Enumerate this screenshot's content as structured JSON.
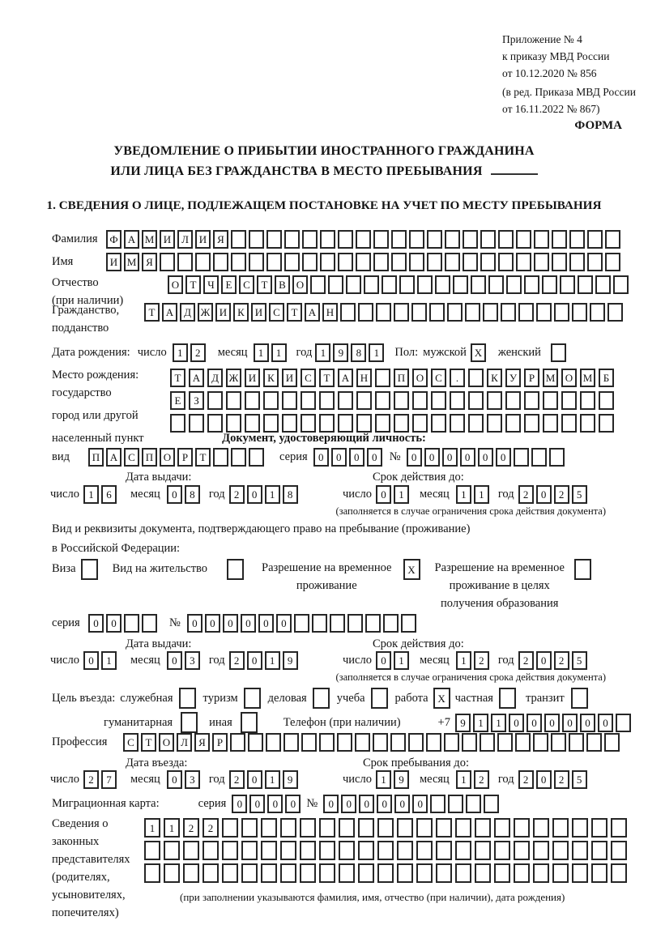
{
  "header": {
    "appendix": [
      "Приложение № 4",
      "к приказу МВД России",
      "от 10.12.2020 № 856"
    ],
    "revision": [
      "(в ред. Приказа МВД России",
      "от 16.11.2022 № 867)"
    ],
    "form_label": "ФОРМА"
  },
  "title": {
    "line1": "УВЕДОМЛЕНИЕ О ПРИБЫТИИ ИНОСТРАННОГО ГРАЖДАНИНА",
    "line2": "ИЛИ ЛИЦА БЕЗ ГРАЖДАНСТВА В МЕСТО ПРЕБЫВАНИЯ"
  },
  "section1": {
    "heading": "1. СВЕДЕНИЯ О ЛИЦЕ, ПОДЛЕЖАЩЕМ ПОСТАНОВКЕ НА УЧЕТ ПО МЕСТУ ПРЕБЫВАНИЯ",
    "surname": {
      "label": "Фамилия",
      "cells": {
        "value": "ФАМИЛИЯ",
        "length": 29
      }
    },
    "given_name": {
      "label": "Имя",
      "cells": {
        "value": "ИМЯ",
        "length": 29
      }
    },
    "patronymic": {
      "label": "Отчество",
      "sublabel": "(при наличии)",
      "cells": {
        "value": "ОТЧЕСТВО",
        "length": 26
      }
    },
    "citizenship": {
      "label": "Гражданство,",
      "sublabel": "подданство",
      "cells": {
        "value": "ТАДЖИКИСТАН",
        "length": 27
      }
    },
    "birth_date": {
      "label": "Дата рождения:",
      "day_label": "число",
      "day": "12",
      "month_label": "месяц",
      "month": "11",
      "year_label": "год",
      "year": "1981"
    },
    "sex": {
      "label": "Пол:",
      "male_label": "мужской",
      "male_checked": "X",
      "female_label": "женский",
      "female_checked": ""
    },
    "birth_place": {
      "label_lines": [
        "Место рождения:",
        "государство",
        "город или другой",
        "населенный пункт"
      ],
      "row1": {
        "value": "ТАДЖИКИСТАН ПОС. КУРМОМБ",
        "length": 24
      },
      "row2": {
        "value": "ЕЗ",
        "length": 24
      },
      "row3": {
        "value": "",
        "length": 24
      }
    },
    "identity_doc": {
      "heading": "Документ, удостоверяющий личность:",
      "kind_label": "вид",
      "kind": {
        "value": "ПАСПОРТ",
        "length": 10
      },
      "series_label": "серия",
      "series": {
        "value": "0000",
        "length": 4
      },
      "number_label": "№",
      "number": {
        "value": "000000",
        "length": 9
      },
      "issue_heading": "Дата выдачи:",
      "issue": {
        "day_label": "число",
        "day": "16",
        "month_label": "месяц",
        "month": "08",
        "year_label": "год",
        "year": "2018"
      },
      "expiry_heading": "Срок действия до:",
      "expiry": {
        "day_label": "число",
        "day": "01",
        "month_label": "месяц",
        "month": "11",
        "year_label": "год",
        "year": "2025"
      },
      "note": "(заполняется в случае ограничения срока действия документа)"
    },
    "residence_doc": {
      "heading_line1": "Вид и реквизиты документа, подтверждающего право на пребывание (проживание)",
      "heading_line2": "в Российской Федерации:",
      "visa_label": "Виза",
      "visa_checked": "",
      "residence_permit_label": "Вид на жительство",
      "residence_permit_checked": "",
      "temp_permit_line1": "Разрешение на временное",
      "temp_permit_line2": "проживание",
      "temp_permit_checked": "X",
      "edu_permit_line1": "Разрешение на временное",
      "edu_permit_line2": "проживание в целях",
      "edu_permit_line3": "получения образования",
      "edu_permit_checked": "",
      "series_label": "серия",
      "series": {
        "value": "00",
        "length": 4
      },
      "number_label": "№",
      "number": {
        "value": "000000",
        "length": 13
      },
      "issue_heading": "Дата выдачи:",
      "issue": {
        "day_label": "число",
        "day": "01",
        "month_label": "месяц",
        "month": "03",
        "year_label": "год",
        "year": "2019"
      },
      "expiry_heading": "Срок действия до:",
      "expiry": {
        "day_label": "число",
        "day": "01",
        "month_label": "месяц",
        "month": "12",
        "year_label": "год",
        "year": "2025"
      },
      "note": "(заполняется в случае ограничения срока действия документа)"
    },
    "purpose": {
      "label": "Цель въезда:",
      "options": [
        {
          "label": "служебная",
          "checked": ""
        },
        {
          "label": "туризм",
          "checked": ""
        },
        {
          "label": "деловая",
          "checked": ""
        },
        {
          "label": "учеба",
          "checked": ""
        },
        {
          "label": "работа",
          "checked": "X"
        },
        {
          "label": "частная",
          "checked": ""
        },
        {
          "label": "транзит",
          "checked": ""
        },
        {
          "label": "гуманитарная",
          "checked": ""
        },
        {
          "label": "иная",
          "checked": ""
        }
      ]
    },
    "phone": {
      "label": "Телефон (при наличии)",
      "prefix": "+7",
      "cells": {
        "value": "911000000",
        "length": 10
      }
    },
    "profession": {
      "label": "Профессия",
      "cells": {
        "value": "СТОЛЯР",
        "length": 28
      }
    },
    "entry_date": {
      "heading": "Дата въезда:",
      "day_label": "число",
      "day": "27",
      "month_label": "месяц",
      "month": "03",
      "year_label": "год",
      "year": "2019"
    },
    "stay_until": {
      "heading": "Срок пребывания до:",
      "day_label": "число",
      "day": "19",
      "month_label": "месяц",
      "month": "12",
      "year_label": "год",
      "year": "2025"
    },
    "migration_card": {
      "label": "Миграционная карта:",
      "series_label": "серия",
      "series": {
        "value": "0000",
        "length": 4
      },
      "number_label": "№",
      "number": {
        "value": "000000",
        "length": 10
      }
    },
    "representatives": {
      "label_lines": [
        "Сведения о",
        "законных",
        "представителях",
        "(родителях,",
        "усыновителях,",
        "попечителях)"
      ],
      "row1": {
        "value": "1122",
        "length": 25
      },
      "row2": {
        "value": "",
        "length": 25
      },
      "row3": {
        "value": "",
        "length": 25
      },
      "note": "(при заполнении указываются фамилия, имя, отчество (при наличии), дата рождения)"
    }
  }
}
